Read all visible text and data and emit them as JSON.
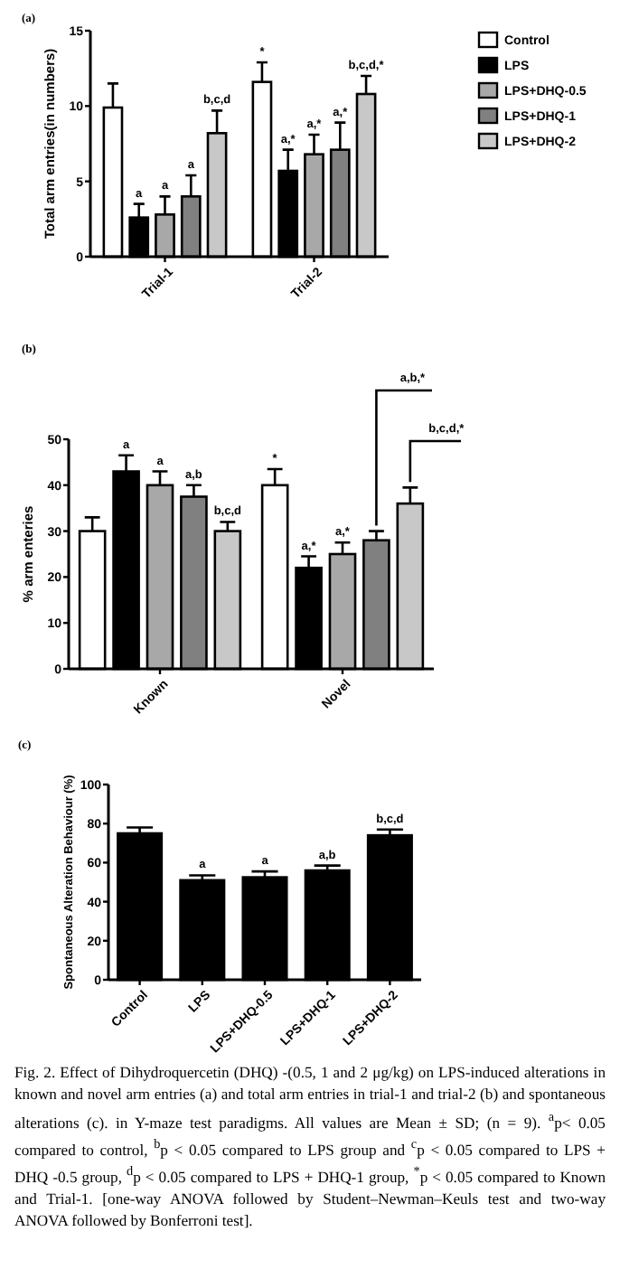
{
  "chart_data": [
    {
      "type": "bar",
      "title": "(a)",
      "ylabel": "Total arm entries(in numbers)",
      "categories": [
        "Trial-1",
        "Trial-2"
      ],
      "ylim": [
        0,
        15
      ],
      "yticks": [
        0,
        5,
        10,
        15
      ],
      "legend": "right",
      "series": [
        {
          "name": "Control",
          "color": "#ffffff",
          "values": [
            9.9,
            11.6
          ],
          "errors": [
            1.6,
            1.3
          ],
          "value_labels": [
            null,
            "*"
          ]
        },
        {
          "name": "LPS",
          "color": "#000000",
          "values": [
            2.6,
            5.7
          ],
          "errors": [
            0.9,
            1.4
          ],
          "value_labels": [
            "a",
            "a,*"
          ]
        },
        {
          "name": "LPS+DHQ-0.5",
          "color": "#a8a8a8",
          "values": [
            2.8,
            6.8
          ],
          "errors": [
            1.2,
            1.3
          ],
          "value_labels": [
            "a",
            "a,*"
          ]
        },
        {
          "name": "LPS+DHQ-1",
          "color": "#808080",
          "values": [
            4.0,
            7.1
          ],
          "errors": [
            1.4,
            1.8
          ],
          "value_labels": [
            "a",
            "a,*"
          ]
        },
        {
          "name": "LPS+DHQ-2",
          "color": "#c8c8c8",
          "values": [
            8.2,
            10.8
          ],
          "errors": [
            1.5,
            1.2
          ],
          "value_labels": [
            "b,c,d",
            "b,c,d,*"
          ]
        }
      ]
    },
    {
      "type": "bar",
      "title": "(b)",
      "ylabel": "% arm enteries",
      "categories": [
        "Known",
        "Novel"
      ],
      "ylim": [
        0,
        50
      ],
      "yticks": [
        0,
        10,
        20,
        30,
        40,
        50
      ],
      "annotations": [
        "a,b,*",
        "b,c,d,*"
      ],
      "series": [
        {
          "color": "#ffffff",
          "values": [
            30,
            40
          ],
          "errors": [
            3,
            3.5
          ],
          "value_labels": [
            null,
            "*"
          ]
        },
        {
          "color": "#000000",
          "values": [
            43,
            22
          ],
          "errors": [
            3.5,
            2.5
          ],
          "value_labels": [
            "a",
            "a,*"
          ]
        },
        {
          "color": "#a8a8a8",
          "values": [
            40,
            25
          ],
          "errors": [
            3,
            2.5
          ],
          "value_labels": [
            "a",
            "a,*"
          ]
        },
        {
          "color": "#808080",
          "values": [
            37.5,
            28
          ],
          "errors": [
            2.5,
            2
          ],
          "value_labels": [
            "a,b",
            null
          ]
        },
        {
          "color": "#c8c8c8",
          "values": [
            30,
            36
          ],
          "errors": [
            2,
            3.5
          ],
          "value_labels": [
            "b,c,d",
            null
          ]
        }
      ]
    },
    {
      "type": "bar",
      "title": "(c)",
      "ylabel": "Spontaneous Alteration Behaviour (%)",
      "categories": [
        "Control",
        "LPS",
        "LPS+DHQ-0.5",
        "LPS+DHQ-1",
        "LPS+DHQ-2"
      ],
      "ylim": [
        0,
        100
      ],
      "yticks": [
        0,
        20,
        40,
        60,
        80,
        100
      ],
      "series": [
        {
          "color": "#000000",
          "values": [
            75,
            51,
            52.5,
            56,
            74
          ],
          "errors": [
            3,
            2.5,
            3,
            2.5,
            3
          ],
          "value_labels": [
            null,
            "a",
            "a",
            "a,b",
            "b,c,d"
          ]
        }
      ],
      "annotations": [
        "Fig. 2. Effect of Dihydroquercetin (DHQ) -(0.5, 1 and 2 μg/kg) on LPS-induced alterations in known and novel arm entries (a) and total arm entries in trial-1 and trial-2 (b) and spontaneous alterations (c). in Y-maze test paradigms. All values are Mean ± SD; (n = 9). $^{a}$p< 0.05 compared to control, $^{b}$p < 0.05 compared to LPS group and $^{c}$p < 0.05 compared to LPS + DHQ -0.5 group, $^{d}$p < 0.05 compared to LPS + DHQ-1 group, $^{*}$p < 0.05 compared to Known and Trial-1. [one-way ANOVA followed by Student–Newman–Keuls test and two-way ANOVA followed by Bonferroni test]."
      ]
    }
  ]
}
